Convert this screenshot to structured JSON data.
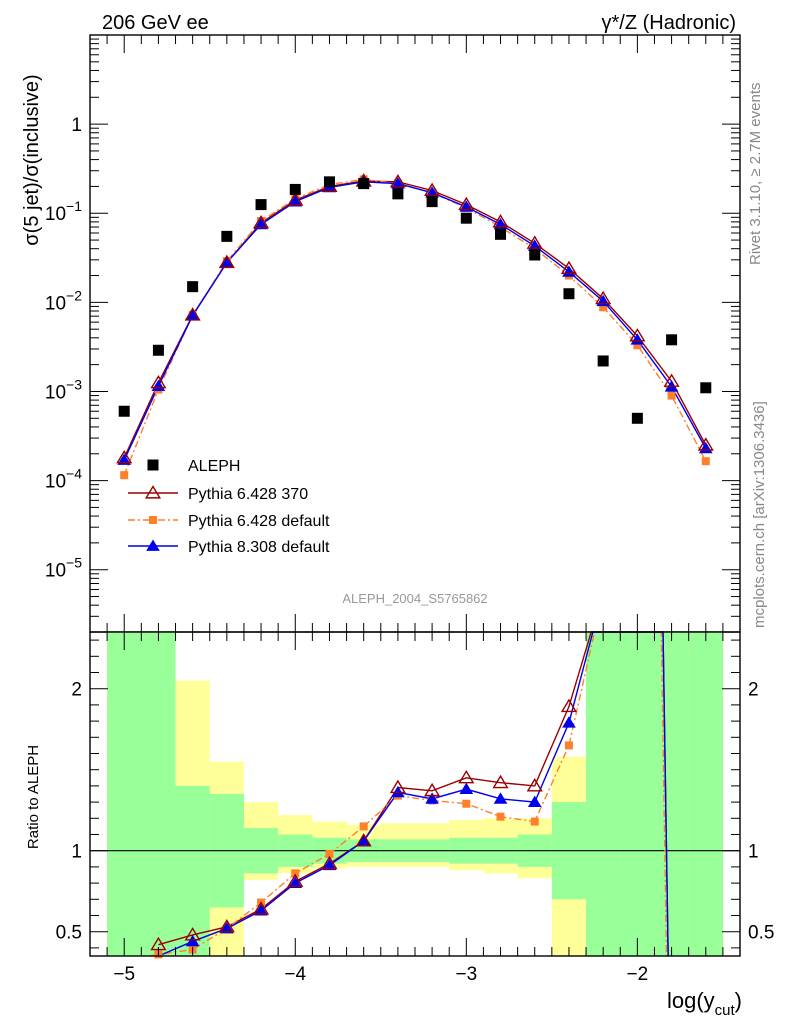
{
  "header": {
    "left_label": "206 GeV ee",
    "right_label": "γ*/Z (Hadronic)"
  },
  "side_labels": {
    "rivet": "Rivet 3.1.10, ≥ 2.7M events",
    "mcplots": "mcplots.cern.ch [arXiv:1306.3436]"
  },
  "analysis_label": "ALEPH_2004_S5765862",
  "colors": {
    "aleph": "#000000",
    "py6_370": "#990000",
    "py6_default": "#ff7f2a",
    "py8_default": "#0000ee",
    "band_inner": "#99ff99",
    "band_outer": "#ffff99"
  },
  "chart_data": [
    {
      "type": "scatter",
      "panel": "main",
      "ylabel": "σ(5 jet)/σ(inclusive)",
      "xlabel": "",
      "yscale": "log",
      "xlim": [
        -5.2,
        -1.4
      ],
      "ylim": [
        2e-06,
        10
      ],
      "y_ticks": [
        "10^-5",
        "10^-4",
        "10^-3",
        "10^-2",
        "10^-1",
        "1"
      ],
      "legend_placement": "lower-left",
      "x": [
        -5.0,
        -4.8,
        -4.6,
        -4.4,
        -4.2,
        -4.0,
        -3.8,
        -3.6,
        -3.4,
        -3.2,
        -3.0,
        -2.8,
        -2.6,
        -2.4,
        -2.2,
        -2.0,
        -1.8,
        -1.6
      ],
      "series": [
        {
          "name": "ALEPH",
          "key": "aleph",
          "marker": "square",
          "values": [
            0.0006,
            0.0029,
            0.015,
            0.055,
            0.125,
            0.185,
            0.225,
            0.215,
            0.165,
            0.135,
            0.088,
            0.058,
            0.034,
            0.0125,
            0.0022,
            0.0005,
            0.0038,
            0.0011
          ]
        },
        {
          "name": "Pythia 6.428 370",
          "key": "py6_370",
          "marker": "open-triangle",
          "values": [
            0.00018,
            0.00125,
            0.0072,
            0.028,
            0.078,
            0.14,
            0.2,
            0.23,
            0.225,
            0.18,
            0.125,
            0.08,
            0.046,
            0.024,
            0.011,
            0.0042,
            0.0013,
            0.00025
          ]
        },
        {
          "name": "Pythia 6.428 default",
          "key": "py6_default",
          "marker": "square-small",
          "values": [
            0.000115,
            0.00105,
            0.0072,
            0.029,
            0.082,
            0.145,
            0.21,
            0.24,
            0.215,
            0.17,
            0.115,
            0.07,
            0.04,
            0.02,
            0.0088,
            0.0033,
            0.0009,
            0.000165
          ]
        },
        {
          "name": "Pythia 8.308 default",
          "key": "py8_default",
          "marker": "filled-triangle",
          "values": [
            0.00017,
            0.00115,
            0.0071,
            0.028,
            0.075,
            0.135,
            0.195,
            0.225,
            0.215,
            0.17,
            0.118,
            0.075,
            0.043,
            0.022,
            0.0103,
            0.0038,
            0.00113,
            0.00023
          ]
        }
      ]
    },
    {
      "type": "line",
      "panel": "ratio",
      "ylabel": "Ratio to ALEPH",
      "xlabel": "log(y_cut)",
      "xlim": [
        -5.2,
        -1.4
      ],
      "ylim": [
        0.35,
        2.35
      ],
      "x_ticks": [
        "−5",
        "−4",
        "−3",
        "−2"
      ],
      "y_ticks": [
        "0.5",
        "1",
        "2"
      ],
      "reference_line": 1,
      "bins": [
        {
          "lo": -5.1,
          "hi": -4.9,
          "inner": [
            0.35,
            2.35
          ],
          "outer": [
            0.35,
            2.35
          ]
        },
        {
          "lo": -4.9,
          "hi": -4.7,
          "inner": [
            0.35,
            2.35
          ],
          "outer": [
            0.35,
            2.35
          ]
        },
        {
          "lo": -4.7,
          "hi": -4.5,
          "inner": [
            0.35,
            1.4
          ],
          "outer": [
            0.35,
            2.05
          ]
        },
        {
          "lo": -4.5,
          "hi": -4.3,
          "inner": [
            0.65,
            1.35
          ],
          "outer": [
            0.35,
            1.55
          ]
        },
        {
          "lo": -4.3,
          "hi": -4.1,
          "inner": [
            0.86,
            1.14
          ],
          "outer": [
            0.82,
            1.3
          ]
        },
        {
          "lo": -4.1,
          "hi": -3.9,
          "inner": [
            0.9,
            1.1
          ],
          "outer": [
            0.86,
            1.22
          ]
        },
        {
          "lo": -3.9,
          "hi": -3.7,
          "inner": [
            0.92,
            1.08
          ],
          "outer": [
            0.89,
            1.18
          ]
        },
        {
          "lo": -3.7,
          "hi": -3.5,
          "inner": [
            0.93,
            1.07
          ],
          "outer": [
            0.9,
            1.16
          ]
        },
        {
          "lo": -3.5,
          "hi": -3.3,
          "inner": [
            0.93,
            1.07
          ],
          "outer": [
            0.9,
            1.17
          ]
        },
        {
          "lo": -3.3,
          "hi": -3.1,
          "inner": [
            0.93,
            1.07
          ],
          "outer": [
            0.9,
            1.17
          ]
        },
        {
          "lo": -3.1,
          "hi": -2.9,
          "inner": [
            0.92,
            1.08
          ],
          "outer": [
            0.88,
            1.19
          ]
        },
        {
          "lo": -2.9,
          "hi": -2.7,
          "inner": [
            0.92,
            1.08
          ],
          "outer": [
            0.86,
            1.2
          ]
        },
        {
          "lo": -2.7,
          "hi": -2.5,
          "inner": [
            0.9,
            1.1
          ],
          "outer": [
            0.83,
            1.2
          ]
        },
        {
          "lo": -2.5,
          "hi": -2.3,
          "inner": [
            0.7,
            1.3
          ],
          "outer": [
            0.35,
            1.58
          ]
        },
        {
          "lo": -2.3,
          "hi": -2.1,
          "inner": [
            0.35,
            2.35
          ],
          "outer": [
            0.35,
            2.35
          ]
        },
        {
          "lo": -2.1,
          "hi": -1.9,
          "inner": [
            0.35,
            2.35
          ],
          "outer": [
            0.35,
            2.35
          ]
        },
        {
          "lo": -1.9,
          "hi": -1.7,
          "inner": [
            0.35,
            2.35
          ],
          "outer": [
            0.35,
            2.35
          ]
        },
        {
          "lo": -1.7,
          "hi": -1.5,
          "inner": [
            0.35,
            2.35
          ],
          "outer": [
            0.35,
            2.35
          ]
        }
      ],
      "series": [
        {
          "name": "Pythia 6.428 370",
          "key": "py6_370",
          "marker": "open-triangle",
          "x": [
            -4.8,
            -4.6,
            -4.4,
            -4.2,
            -4.0,
            -3.8,
            -3.6,
            -3.4,
            -3.2,
            -3.0,
            -2.8,
            -2.6,
            -2.4,
            -2.27,
            -1.85,
            -1.82
          ],
          "values": [
            0.42,
            0.48,
            0.53,
            0.64,
            0.81,
            0.92,
            1.06,
            1.39,
            1.37,
            1.45,
            1.42,
            1.4,
            1.89,
            2.35,
            2.35,
            0.35
          ]
        },
        {
          "name": "Pythia 6.428 default",
          "key": "py6_default",
          "marker": "square-small",
          "x": [
            -4.85,
            -4.8,
            -4.6,
            -4.4,
            -4.2,
            -4.0,
            -3.8,
            -3.6,
            -3.4,
            -3.2,
            -3.0,
            -2.8,
            -2.6,
            -2.4,
            -2.25,
            -1.86,
            -1.83
          ],
          "values": [
            0.35,
            0.36,
            0.39,
            0.52,
            0.68,
            0.86,
            0.98,
            1.15,
            1.34,
            1.31,
            1.29,
            1.21,
            1.18,
            1.65,
            2.35,
            2.35,
            0.35
          ]
        },
        {
          "name": "Pythia 8.308 default",
          "key": "py8_default",
          "marker": "filled-triangle",
          "x": [
            -4.8,
            -4.6,
            -4.4,
            -4.2,
            -4.0,
            -3.8,
            -3.6,
            -3.4,
            -3.2,
            -3.0,
            -2.8,
            -2.6,
            -2.4,
            -2.26,
            -1.85,
            -1.82
          ],
          "values": [
            0.35,
            0.44,
            0.52,
            0.63,
            0.8,
            0.91,
            1.06,
            1.36,
            1.32,
            1.38,
            1.32,
            1.3,
            1.79,
            2.35,
            2.35,
            0.35
          ]
        }
      ]
    }
  ]
}
